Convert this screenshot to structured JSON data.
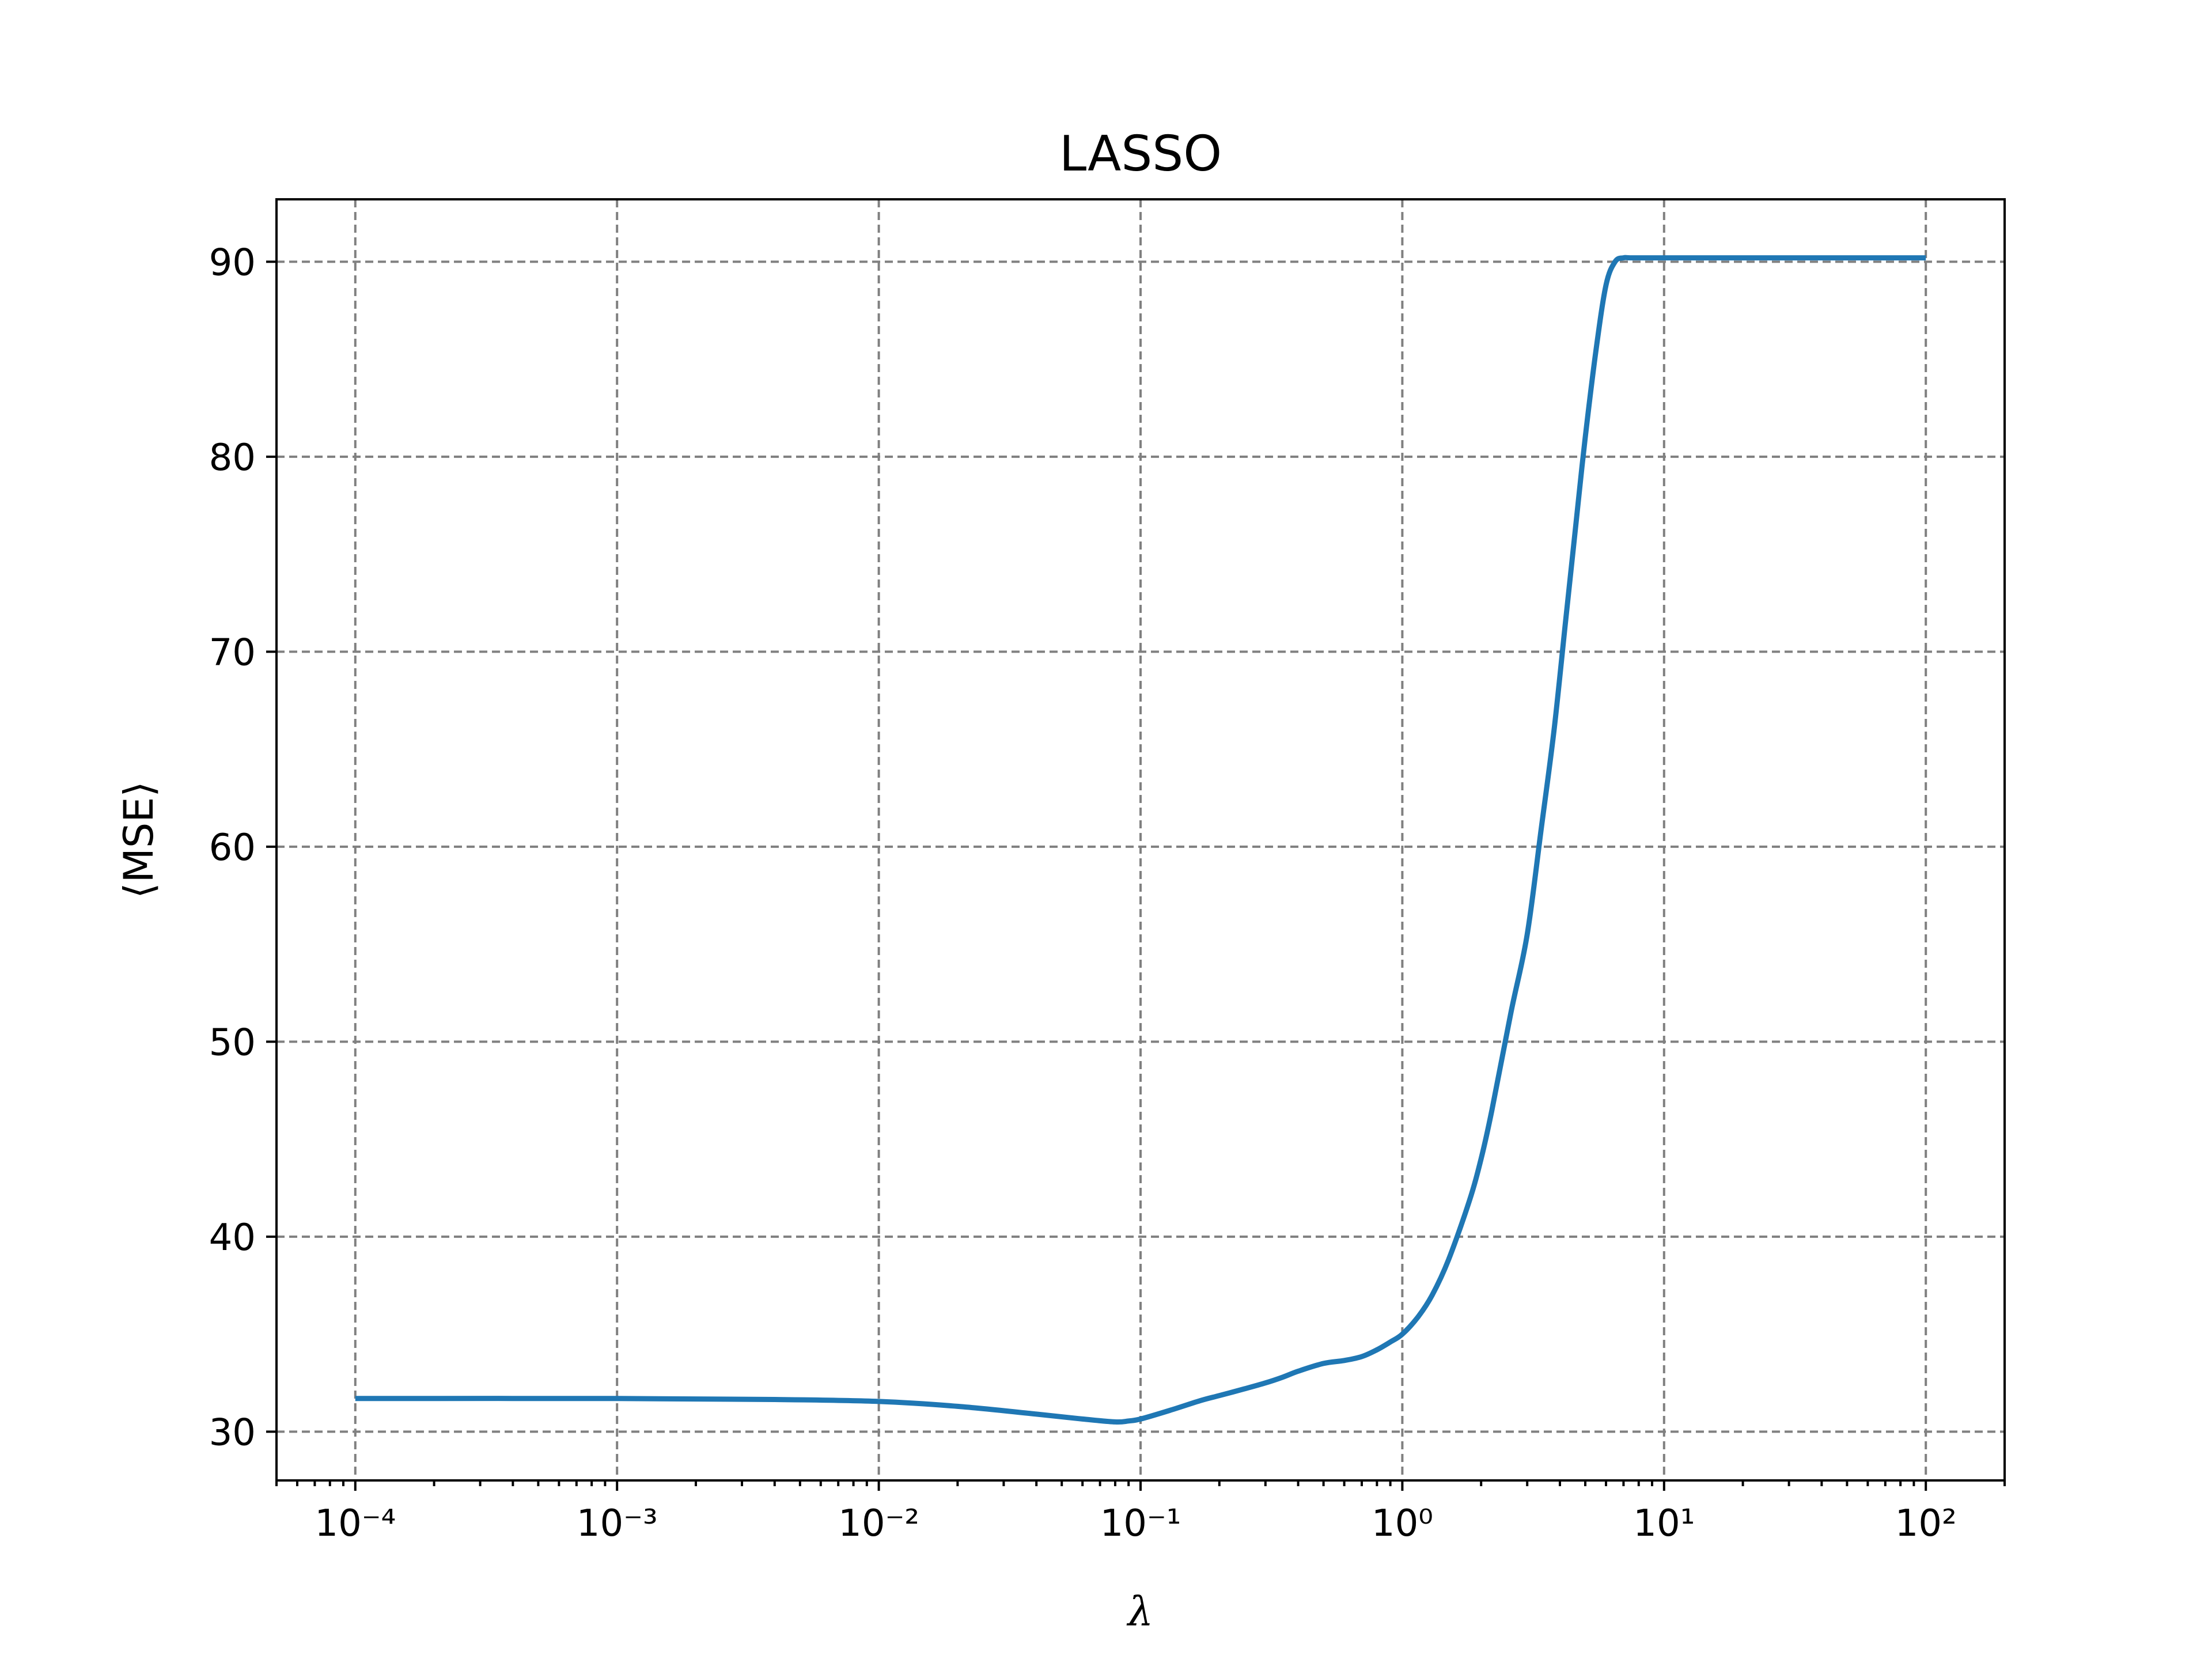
{
  "chart_data": {
    "type": "line",
    "title": "LASSO",
    "xlabel": "λ",
    "ylabel": "⟨MSE⟩",
    "xscale": "log",
    "xlim": [
      5e-05,
      200
    ],
    "ylim": [
      27.5,
      93.2
    ],
    "grid": true,
    "series_color": "#1f77b4",
    "x_tick_labels": [
      {
        "value": 0.0001,
        "label": "10⁻⁴"
      },
      {
        "value": 0.001,
        "label": "10⁻³"
      },
      {
        "value": 0.01,
        "label": "10⁻²"
      },
      {
        "value": 0.1,
        "label": "10⁻¹"
      },
      {
        "value": 1,
        "label": "10⁰"
      },
      {
        "value": 10,
        "label": "10¹"
      },
      {
        "value": 100,
        "label": "10²"
      }
    ],
    "y_tick_labels": [
      {
        "value": 30,
        "label": "30"
      },
      {
        "value": 40,
        "label": "40"
      },
      {
        "value": 50,
        "label": "50"
      },
      {
        "value": 60,
        "label": "60"
      },
      {
        "value": 70,
        "label": "70"
      },
      {
        "value": 80,
        "label": "80"
      },
      {
        "value": 90,
        "label": "90"
      }
    ],
    "series": [
      {
        "x": [
          0.0001,
          0.001,
          0.004,
          0.01,
          0.02,
          0.04,
          0.06,
          0.08,
          0.09,
          0.1,
          0.13,
          0.17,
          0.2,
          0.25,
          0.3,
          0.35,
          0.4,
          0.5,
          0.6,
          0.7,
          0.8,
          0.9,
          1.0,
          1.15,
          1.3,
          1.5,
          1.8,
          2.0,
          2.2,
          2.6,
          3.0,
          3.4,
          3.8,
          4.2,
          4.6,
          5.0,
          5.5,
          6.0,
          6.5,
          7.0,
          7.5,
          10,
          30,
          100
        ],
        "y": [
          31.7,
          31.7,
          31.65,
          31.55,
          31.3,
          30.9,
          30.65,
          30.5,
          30.55,
          30.65,
          31.1,
          31.6,
          31.85,
          32.2,
          32.5,
          32.8,
          33.1,
          33.5,
          33.65,
          33.85,
          34.2,
          34.6,
          35.0,
          35.9,
          37.0,
          38.8,
          41.8,
          44.0,
          46.5,
          51.5,
          55.5,
          61.0,
          66.0,
          71.5,
          76.5,
          81.0,
          85.5,
          88.8,
          90.0,
          90.2,
          90.2,
          90.2,
          90.2,
          90.2
        ]
      }
    ]
  }
}
